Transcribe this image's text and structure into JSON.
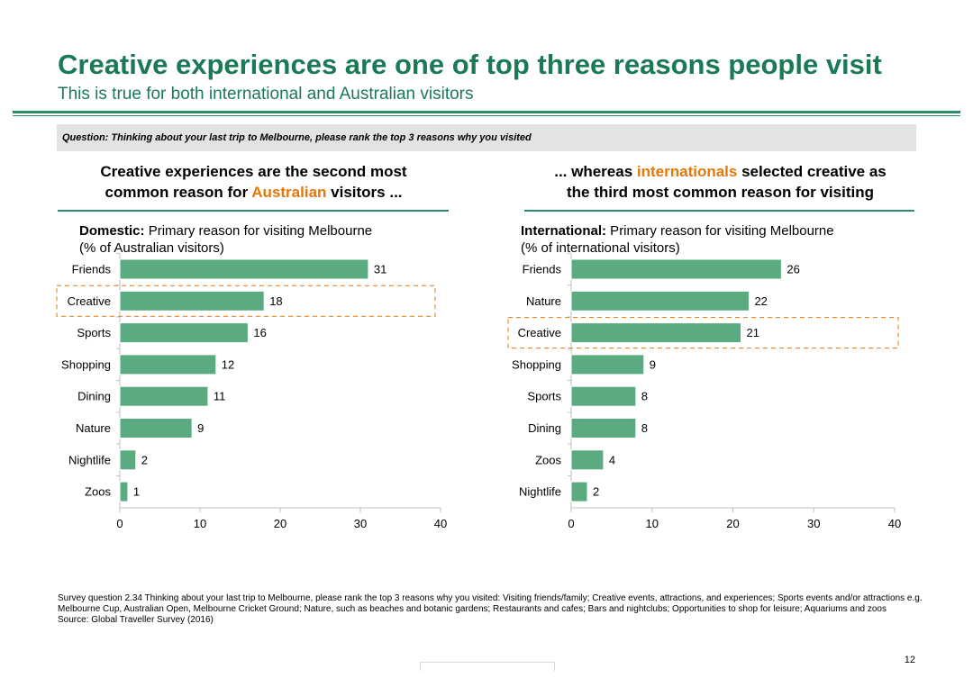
{
  "header": {
    "title": "Creative experiences are one of top three reasons people visit",
    "subtitle": "This is true for both international and Australian visitors"
  },
  "question": "Question: Thinking about your last trip to Melbourne, please rank the top 3 reasons why you visited",
  "panels": {
    "left": {
      "head_line1": "Creative experiences are the second most",
      "head_line2_pre": "common reason for ",
      "head_line2_accent": "Australian",
      "head_line2_post": " visitors ..."
    },
    "right": {
      "head_line1_pre": "... whereas ",
      "head_line1_accent": "internationals",
      "head_line1_post": " selected creative as",
      "head_line2": "the third most common reason for visiting"
    }
  },
  "chart_data": [
    {
      "type": "bar",
      "orientation": "horizontal",
      "title_bold": "Domestic:",
      "title_rest": " Primary reason for visiting Melbourne",
      "subtitle": "(% of Australian visitors)",
      "categories": [
        "Friends",
        "Creative",
        "Sports",
        "Shopping",
        "Dining",
        "Nature",
        "Nightlife",
        "Zoos"
      ],
      "values": [
        31,
        18,
        16,
        12,
        11,
        9,
        2,
        1
      ],
      "xlim": [
        0,
        40
      ],
      "xticks": [
        "0",
        "10",
        "20",
        "30",
        "40"
      ],
      "highlight": "Creative",
      "bar_color": "#5aab80",
      "highlight_color": "#e3780c"
    },
    {
      "type": "bar",
      "orientation": "horizontal",
      "title_bold": "International:",
      "title_rest": " Primary reason for visiting Melbourne",
      "subtitle": "(% of international visitors)",
      "categories": [
        "Friends",
        "Nature",
        "Creative",
        "Shopping",
        "Sports",
        "Dining",
        "Zoos",
        "Nightlife"
      ],
      "values": [
        26,
        22,
        21,
        9,
        8,
        8,
        4,
        2
      ],
      "xlim": [
        0,
        40
      ],
      "xticks": [
        "0",
        "10",
        "20",
        "30",
        "40"
      ],
      "highlight": "Creative",
      "bar_color": "#5aab80",
      "highlight_color": "#e3780c"
    }
  ],
  "footnote": {
    "text": "Survey question 2.34 Thinking about your last trip to Melbourne, please rank the top 3 reasons why you visited: Visiting friends/family; Creative events, attractions, and experiences; Sports events and/or attractions e.g. Melbourne Cup, Australian Open, Melbourne Cricket Ground; Nature, such as beaches and botanic gardens; Restaurants and cafes; Bars and nightclubs; Opportunities to shop for leisure; Aquariums and zoos",
    "source": "Source: Global Traveller Survey (2016)"
  },
  "page_number": "12"
}
